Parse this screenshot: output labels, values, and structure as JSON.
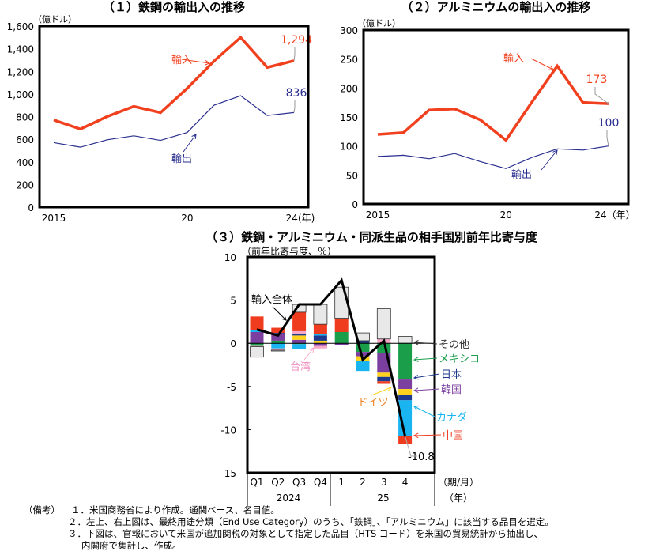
{
  "chart_data": [
    {
      "type": "line",
      "title": "（１）鉄鋼の輸出入の推移",
      "ylabel": "（億ドル）",
      "ylim": [
        0,
        1600
      ],
      "yticks": [
        "0",
        "200",
        "400",
        "600",
        "800",
        "1,000",
        "1,200",
        "1,400",
        "1,600"
      ],
      "xticks": [
        "2015",
        "20",
        "24(年)"
      ],
      "x": [
        2015,
        2016,
        2017,
        2018,
        2019,
        2020,
        2021,
        2022,
        2023,
        2024
      ],
      "series": [
        {
          "name": "輸入",
          "color": "#f0401e",
          "values": [
            770,
            690,
            800,
            890,
            835,
            1050,
            1290,
            1500,
            1235,
            1294
          ],
          "end_label": "1,294"
        },
        {
          "name": "輸出",
          "color": "#2a2f8f",
          "values": [
            570,
            530,
            595,
            630,
            590,
            660,
            900,
            985,
            810,
            836
          ],
          "end_label": "836"
        }
      ]
    },
    {
      "type": "line",
      "title": "（２）アルミニウムの輸出入の推移",
      "ylabel": "（億ドル）",
      "ylim": [
        0,
        300
      ],
      "yticks": [
        "0",
        "50",
        "100",
        "150",
        "200",
        "250",
        "300"
      ],
      "xticks": [
        "2015",
        "20",
        "24（年）"
      ],
      "x": [
        2015,
        2016,
        2017,
        2018,
        2019,
        2020,
        2021,
        2022,
        2023,
        2024
      ],
      "series": [
        {
          "name": "輸入",
          "color": "#f0401e",
          "values": [
            120,
            123,
            162,
            164,
            145,
            110,
            175,
            238,
            175,
            173
          ],
          "end_label": "173"
        },
        {
          "name": "輸出",
          "color": "#2a2f8f",
          "values": [
            82,
            84,
            78,
            87,
            73,
            61,
            80,
            95,
            93,
            100
          ],
          "end_label": "100"
        }
      ]
    },
    {
      "type": "bar",
      "stacked": true,
      "title": "（３）鉄鋼・アルミニウム・同派生品の相手国別前年比寄与度",
      "ylabel": "（前年比寄与度、％）",
      "ylim": [
        -15,
        10
      ],
      "yticks": [
        "-15",
        "-10",
        "-5",
        "0",
        "5",
        "10"
      ],
      "categories": [
        "Q1",
        "Q2",
        "Q3",
        "Q4",
        "1",
        "2",
        "3",
        "4"
      ],
      "groups": [
        {
          "label": "2024"
        },
        {
          "label": "25"
        }
      ],
      "xunit": "（期/月）",
      "xunit2": "（年）",
      "series": [
        {
          "name": "メキシコ",
          "color": "#1a9e4a",
          "values": [
            -0.3,
            0.3,
            -0.1,
            0,
            1.3,
            -1.0,
            -1.1,
            -4.2
          ]
        },
        {
          "name": "韓国",
          "color": "#7b3fa0",
          "values": [
            1.3,
            0.8,
            0.4,
            -0.3,
            -0.2,
            -0.5,
            -2.3,
            -1.1
          ]
        },
        {
          "name": "ドイツ",
          "color": "#ffd21e",
          "values": [
            0,
            0,
            0.5,
            0.3,
            0,
            -0.5,
            -0.5,
            -0.7
          ]
        },
        {
          "name": "日本",
          "color": "#1e3a8f",
          "values": [
            0,
            0.1,
            0.2,
            0.6,
            0,
            0.3,
            -0.5,
            -0.6
          ]
        },
        {
          "name": "カナダ",
          "color": "#1ab4f0",
          "values": [
            0.2,
            -0.6,
            -0.6,
            0.2,
            0,
            -1.2,
            0,
            -4.1
          ]
        },
        {
          "name": "台湾",
          "color": "#f5a8c8",
          "values": [
            -0.1,
            -0.2,
            0.3,
            -0.3,
            0,
            0,
            0.5,
            0
          ]
        },
        {
          "name": "中国",
          "color": "#f03c1e",
          "values": [
            1.6,
            0.6,
            2.2,
            1.1,
            1.6,
            0,
            -0.3,
            -1.0
          ]
        },
        {
          "name": "その他",
          "color": "#e8e8e8",
          "values": [
            -1.2,
            -0.1,
            0.9,
            2.3,
            3.6,
            0.9,
            3.5,
            0.8
          ]
        }
      ],
      "total": {
        "name": "輸入全体",
        "color": "#000000",
        "values": [
          1.6,
          0.9,
          4.5,
          4.5,
          7.3,
          -1.9,
          0.3,
          -10.8
        ],
        "end_label": "-10.8"
      }
    }
  ],
  "notes": {
    "label": "（備考）",
    "items": [
      "１．米国商務省により作成。通関ベース、名目値。",
      "２．左上、右上図は、最終用途分類（End Use Category）のうち、「鉄鋼」、「アルミニウム」に該当する品目を選定。",
      "３．下図は、官報において米国が追加関税の対象として指定した品目（HTS コード）を米国の貿易統計から抽出し、",
      "内閣府で集計し、作成。"
    ]
  }
}
